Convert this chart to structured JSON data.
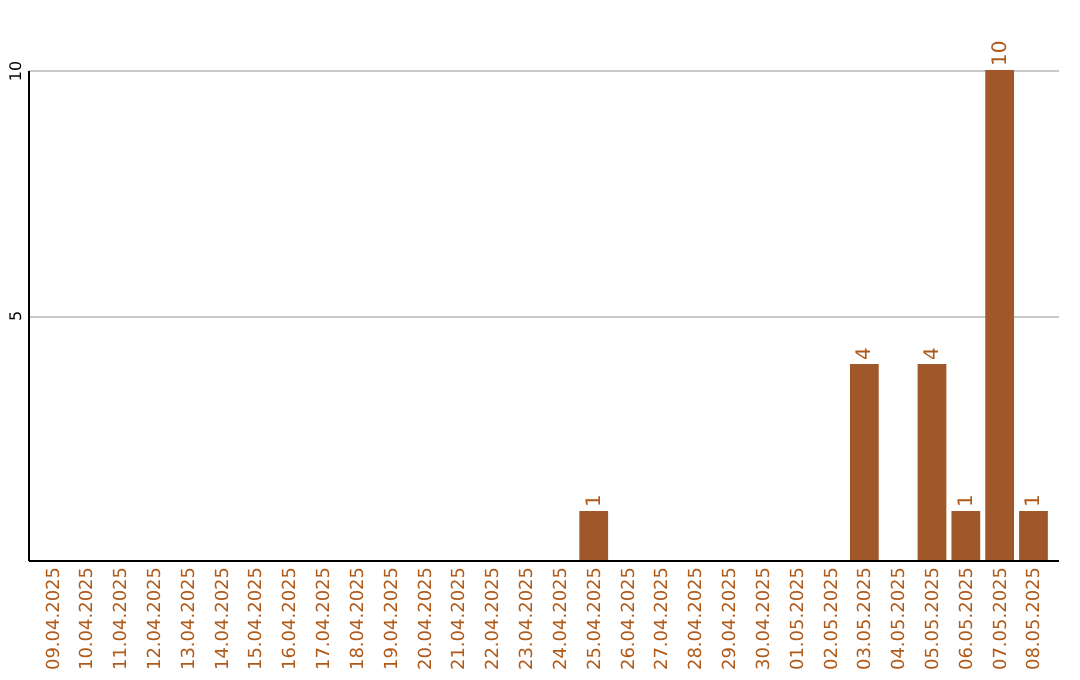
{
  "chart_data": {
    "type": "bar",
    "categories": [
      "09.04.2025",
      "10.04.2025",
      "11.04.2025",
      "12.04.2025",
      "13.04.2025",
      "14.04.2025",
      "15.04.2025",
      "16.04.2025",
      "17.04.2025",
      "18.04.2025",
      "19.04.2025",
      "20.04.2025",
      "21.04.2025",
      "22.04.2025",
      "23.04.2025",
      "24.04.2025",
      "25.04.2025",
      "26.04.2025",
      "27.04.2025",
      "28.04.2025",
      "29.04.2025",
      "30.04.2025",
      "01.05.2025",
      "02.05.2025",
      "03.05.2025",
      "04.05.2025",
      "05.05.2025",
      "06.05.2025",
      "07.05.2025",
      "08.05.2025"
    ],
    "values": [
      0,
      0,
      0,
      0,
      0,
      0,
      0,
      0,
      0,
      0,
      0,
      0,
      0,
      0,
      0,
      0,
      1,
      0,
      0,
      0,
      0,
      0,
      0,
      0,
      4,
      0,
      4,
      1,
      10,
      1
    ],
    "value_labels": [
      null,
      null,
      null,
      null,
      null,
      null,
      null,
      null,
      null,
      null,
      null,
      null,
      null,
      null,
      null,
      null,
      "1",
      null,
      null,
      null,
      null,
      null,
      null,
      null,
      "4",
      null,
      "4",
      "1",
      "10",
      "1"
    ],
    "color": "#a0582a",
    "ylim": [
      0,
      10
    ],
    "yticks": [
      5,
      10
    ],
    "grid": "y"
  }
}
